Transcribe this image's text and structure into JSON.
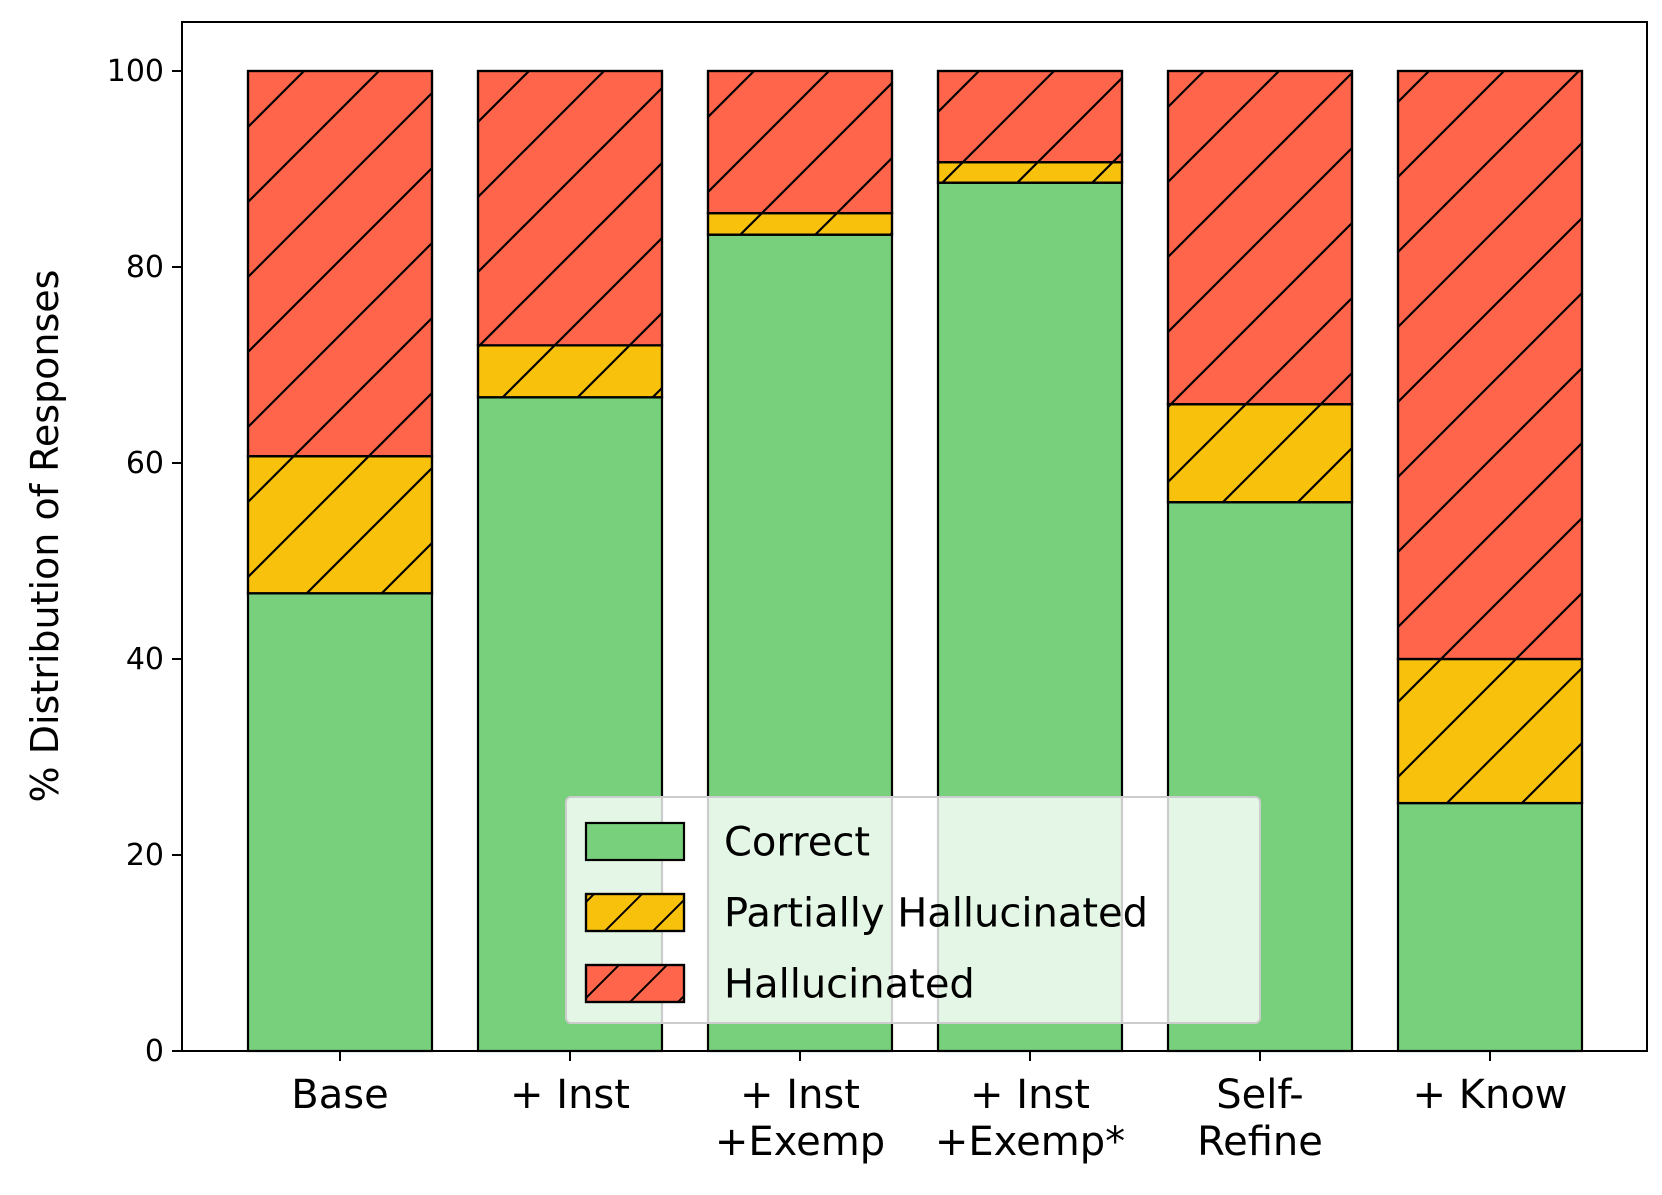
{
  "chart_data": {
    "type": "bar",
    "stacked": true,
    "categories": [
      [
        "Base"
      ],
      [
        "+ Inst"
      ],
      [
        "+ Inst",
        "+Exemp"
      ],
      [
        "+ Inst",
        "+Exemp*"
      ],
      [
        "Self-",
        "Refine"
      ],
      [
        "+ Know"
      ]
    ],
    "series": [
      {
        "name": "Correct",
        "values": [
          46.7,
          66.7,
          83.3,
          88.6,
          56.0,
          25.3
        ],
        "color": "#78cf7c",
        "hatch": false
      },
      {
        "name": "Partially Hallucinated",
        "values": [
          14.0,
          5.3,
          2.2,
          2.1,
          10.0,
          14.7
        ],
        "color": "#f8c10b",
        "hatch": true
      },
      {
        "name": "Hallucinated",
        "values": [
          39.3,
          28.0,
          14.5,
          9.3,
          34.0,
          60.0
        ],
        "color": "#fe654b",
        "hatch": true
      }
    ],
    "title": "",
    "xlabel": "",
    "ylabel": "% Distribution of Responses",
    "ylim": [
      0,
      105
    ],
    "yticks": [
      0,
      20,
      40,
      60,
      80,
      100
    ],
    "grid": false,
    "legend_position": "bottom-center"
  }
}
